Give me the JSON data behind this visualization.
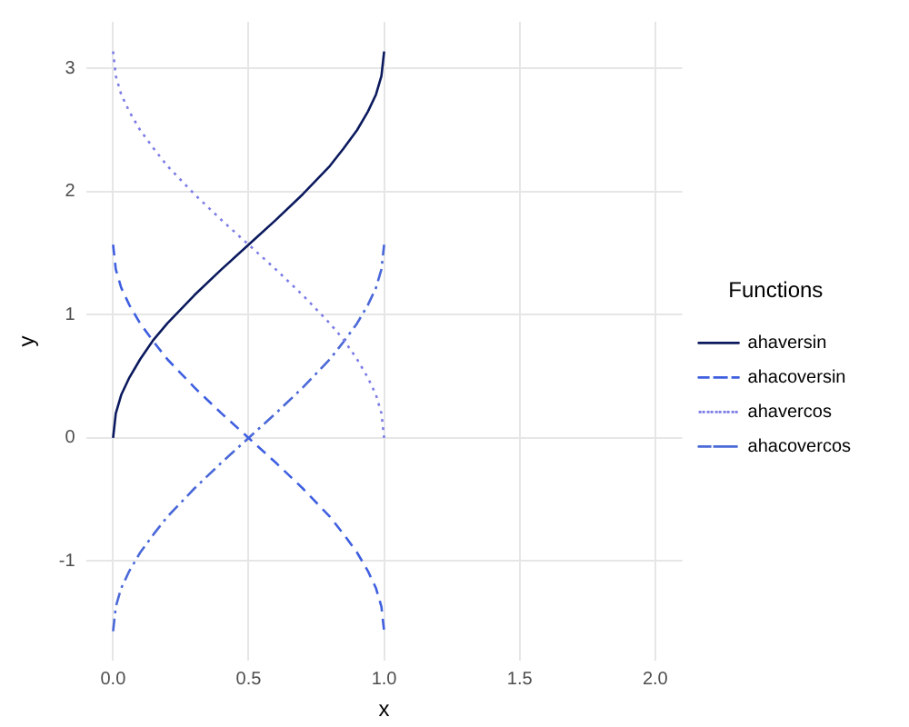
{
  "chart_data": {
    "type": "line",
    "xlabel": "x",
    "ylabel": "y",
    "legend_title": "Functions",
    "legend": "right",
    "grid": true,
    "marker": "none",
    "x": [
      0,
      0.01,
      0.03,
      0.06,
      0.1,
      0.15,
      0.2,
      0.3,
      0.4,
      0.5,
      0.6,
      0.7,
      0.8,
      0.85,
      0.9,
      0.94,
      0.97,
      0.99,
      1
    ],
    "xlim": [
      -0.1,
      2.1
    ],
    "xticks": [
      {
        "value": 0,
        "label": "0.0"
      },
      {
        "value": 0.5,
        "label": "0.5"
      },
      {
        "value": 1,
        "label": "1.0"
      },
      {
        "value": 1.5,
        "label": "1.5"
      },
      {
        "value": 2,
        "label": "2.0"
      }
    ],
    "ylim": [
      -1.81,
      3.38
    ],
    "yticks": [
      -1,
      0,
      1,
      2,
      3
    ],
    "series": [
      {
        "name": "ahaversin",
        "color": "#0b1a5e",
        "line_style": "solid",
        "values": [
          0,
          0.2,
          0.35,
          0.49,
          0.64,
          0.8,
          0.93,
          1.16,
          1.37,
          1.57,
          1.77,
          1.98,
          2.21,
          2.35,
          2.5,
          2.65,
          2.79,
          2.94,
          3.14
        ]
      },
      {
        "name": "ahacoversin",
        "color": "#3f5fe0",
        "line_style": "dashed",
        "values": [
          1.57,
          1.37,
          1.22,
          1.08,
          0.93,
          0.78,
          0.64,
          0.41,
          0.2,
          0,
          -0.2,
          -0.41,
          -0.64,
          -0.78,
          -0.93,
          -1.08,
          -1.22,
          -1.37,
          -1.57
        ]
      },
      {
        "name": "ahavercos",
        "color": "#7b7be6",
        "line_style": "dotted",
        "values": [
          3.14,
          2.94,
          2.79,
          2.65,
          2.5,
          2.35,
          2.21,
          1.98,
          1.77,
          1.57,
          1.37,
          1.16,
          0.93,
          0.8,
          0.64,
          0.49,
          0.35,
          0.2,
          0
        ]
      },
      {
        "name": "ahacovercos",
        "color": "#4a68d8",
        "line_style": "dashdot",
        "values": [
          -1.57,
          -1.37,
          -1.22,
          -1.08,
          -0.93,
          -0.78,
          -0.64,
          -0.41,
          -0.2,
          0,
          0.2,
          0.41,
          0.64,
          0.78,
          0.93,
          1.08,
          1.22,
          1.37,
          1.57
        ]
      }
    ]
  }
}
